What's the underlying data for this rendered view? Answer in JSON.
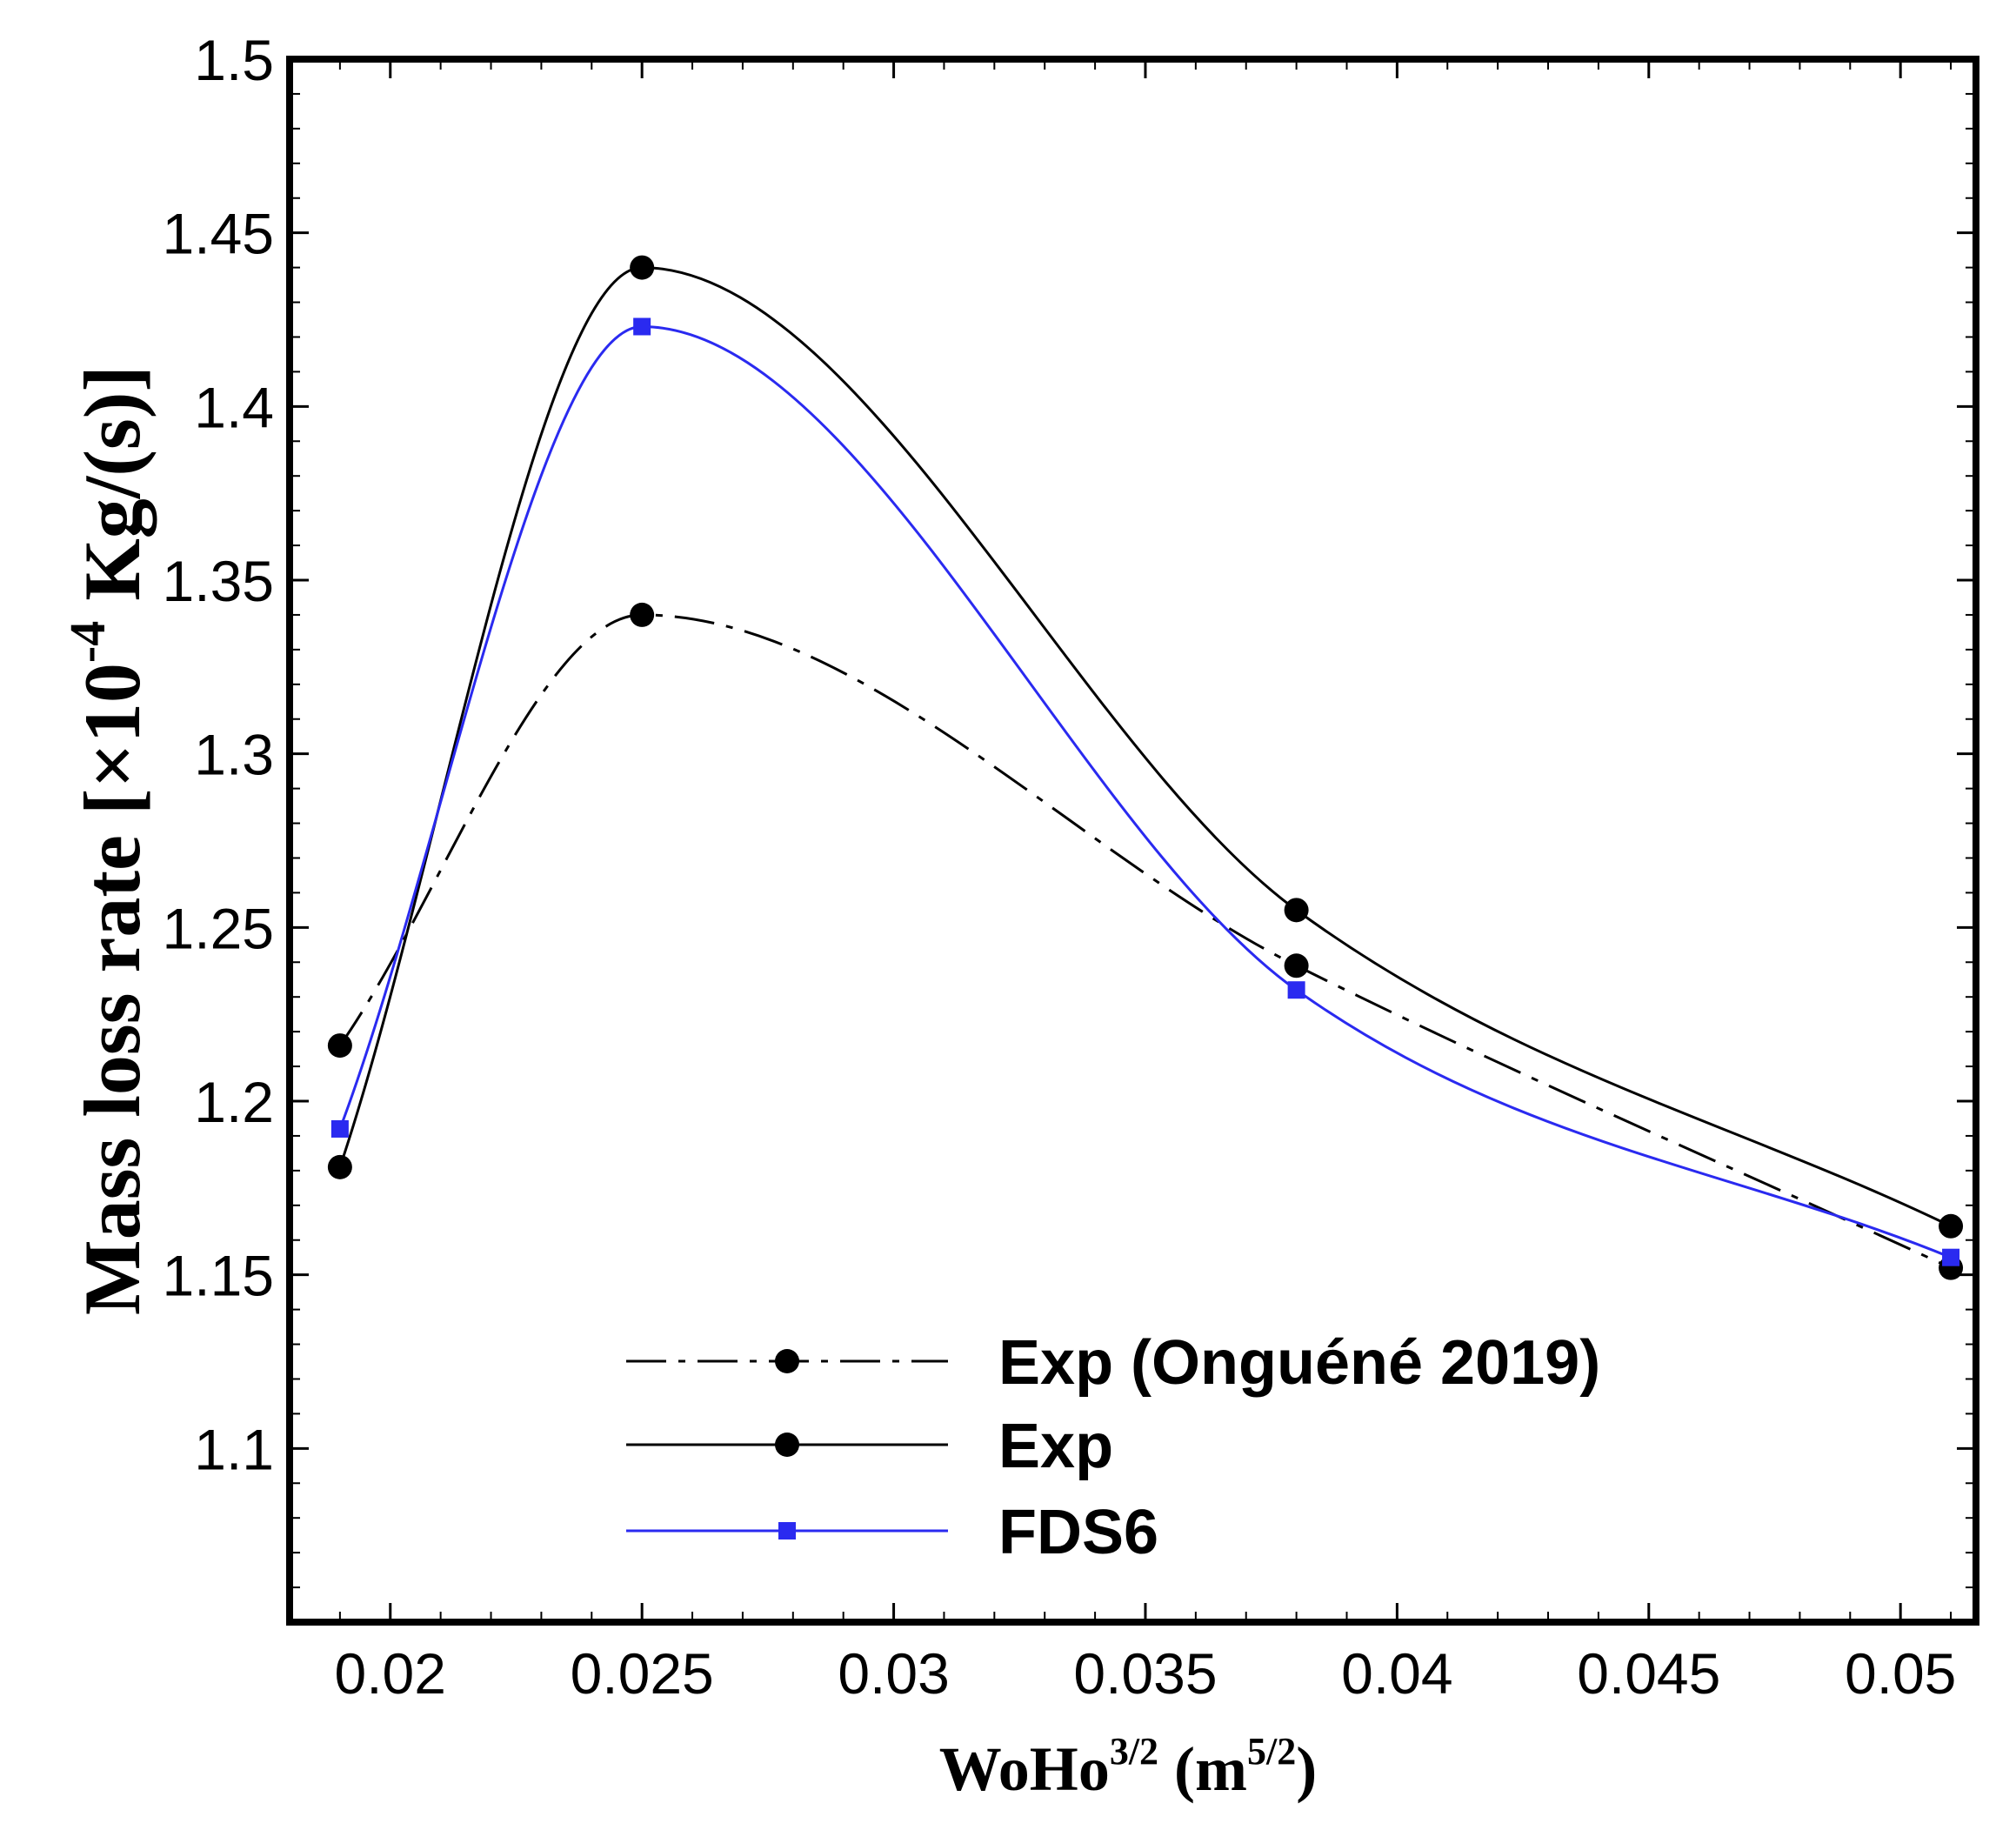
{
  "chart_data": {
    "type": "line",
    "title": "",
    "xlabel": {
      "base": "WoHo",
      "sup": "3/2",
      "unit_open": " (m",
      "unit_sup": "5/2",
      "unit_close": ")"
    },
    "ylabel": {
      "base": "Mass loss rate [×10",
      "sup": "-4",
      "unit": " Kg/(s)]"
    },
    "xlim": [
      0.018,
      0.0515
    ],
    "ylim": [
      1.05,
      1.5
    ],
    "x_ticks": [
      {
        "value": 0.02,
        "label": "0.02"
      },
      {
        "value": 0.025,
        "label": "0.025"
      },
      {
        "value": 0.03,
        "label": "0.03"
      },
      {
        "value": 0.035,
        "label": "0.035"
      },
      {
        "value": 0.04,
        "label": "0.04"
      },
      {
        "value": 0.045,
        "label": "0.045"
      },
      {
        "value": 0.05,
        "label": "0.05"
      }
    ],
    "y_ticks": [
      {
        "value": 1.1,
        "label": "1.1"
      },
      {
        "value": 1.15,
        "label": "1.15"
      },
      {
        "value": 1.2,
        "label": "1.2"
      },
      {
        "value": 1.25,
        "label": "1.25"
      },
      {
        "value": 1.3,
        "label": "1.3"
      },
      {
        "value": 1.35,
        "label": "1.35"
      },
      {
        "value": 1.4,
        "label": "1.4"
      },
      {
        "value": 1.45,
        "label": "1.45"
      },
      {
        "value": 1.5,
        "label": "1.5"
      }
    ],
    "grid": false,
    "legend_position": "bottom-center",
    "series": [
      {
        "name": "Exp (Onguéné 2019)",
        "color": "#000000",
        "line_style": "dashdot",
        "marker": "circle",
        "x": [
          0.019,
          0.025,
          0.038,
          0.051
        ],
        "y": [
          1.216,
          1.34,
          1.239,
          1.152
        ]
      },
      {
        "name": "Exp",
        "color": "#000000",
        "line_style": "solid",
        "marker": "circle",
        "x": [
          0.019,
          0.025,
          0.038,
          0.051
        ],
        "y": [
          1.181,
          1.44,
          1.255,
          1.164
        ]
      },
      {
        "name": "FDS6",
        "color": "#2a2af0",
        "line_style": "solid",
        "marker": "square",
        "x": [
          0.019,
          0.025,
          0.038,
          0.051
        ],
        "y": [
          1.192,
          1.423,
          1.232,
          1.155
        ]
      }
    ]
  }
}
